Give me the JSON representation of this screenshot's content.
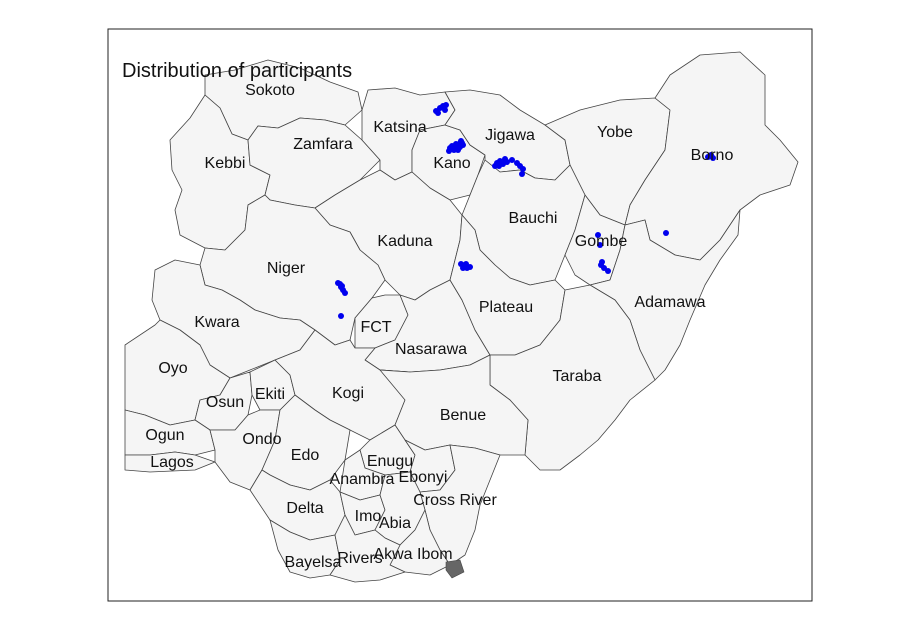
{
  "title": "Distribution of participants",
  "point_color": "#0000ee",
  "state_fill": "#f5f5f5",
  "state_stroke": "#444444",
  "states": {
    "sokoto": "Sokoto",
    "katsina": "Katsina",
    "zamfara": "Zamfara",
    "kebbi": "Kebbi",
    "jigawa": "Jigawa",
    "kano": "Kano",
    "yobe": "Yobe",
    "borno": "Borno",
    "bauchi": "Bauchi",
    "gombe": "Gombe",
    "kaduna": "Kaduna",
    "niger": "Niger",
    "adamawa": "Adamawa",
    "plateau": "Plateau",
    "kwara": "Kwara",
    "fct": "FCT",
    "nasarawa": "Nasarawa",
    "taraba": "Taraba",
    "oyo": "Oyo",
    "ekiti": "Ekiti",
    "osun": "Osun",
    "kogi": "Kogi",
    "benue": "Benue",
    "ogun": "Ogun",
    "ondo": "Ondo",
    "lagos": "Lagos",
    "edo": "Edo",
    "enugu": "Enugu",
    "ebonyi": "Ebonyi",
    "anambra": "Anambra",
    "delta": "Delta",
    "cross_river": "Cross River",
    "imo": "Imo",
    "abia": "Abia",
    "akwa_ibom": "Akwa Ibom",
    "bayelsa": "Bayelsa",
    "rivers": "Rivers"
  },
  "participant_clusters": [
    {
      "state": "Katsina",
      "count": 6
    },
    {
      "state": "Kano",
      "count": 14
    },
    {
      "state": "Jigawa",
      "count": 12
    },
    {
      "state": "Borno",
      "count": 3
    },
    {
      "state": "Kaduna",
      "count": 6
    },
    {
      "state": "Gombe",
      "count": 6
    },
    {
      "state": "Borno/Adamawa border",
      "count": 1
    },
    {
      "state": "Niger",
      "count": 7
    }
  ]
}
